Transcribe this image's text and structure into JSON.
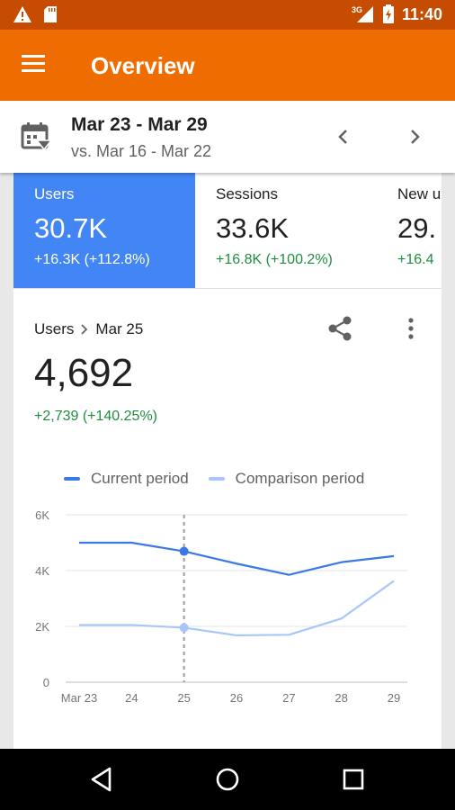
{
  "status_bar": {
    "network": "3G",
    "time": "11:40",
    "icons": [
      "warning-icon",
      "sd-card-icon",
      "signal-icon",
      "battery-icon"
    ]
  },
  "app_bar": {
    "title": "Overview",
    "menu_icon": "menu-icon"
  },
  "date_range": {
    "current": "Mar 23 - Mar 29",
    "comparison": "vs. Mar 16 - Mar 22",
    "icons": [
      "calendar-filter-icon",
      "chevron-left-icon",
      "chevron-right-icon"
    ]
  },
  "metrics": [
    {
      "label": "Users",
      "value": "30.7K",
      "change": "+16.3K (+112.8%)",
      "selected": true
    },
    {
      "label": "Sessions",
      "value": "33.6K",
      "change": "+16.8K (+100.2%)",
      "selected": false
    },
    {
      "label": "New u",
      "value": "29.",
      "change": "+16.4",
      "selected": false
    }
  ],
  "detail": {
    "metric": "Users",
    "date": "Mar 25",
    "value": "4,692",
    "change": "+2,739 (+140.25%)",
    "icons": [
      "share-icon",
      "more-vert-icon"
    ]
  },
  "colors": {
    "status_bar": "#c54c00",
    "app_bar": "#ef6c00",
    "selected_metric": "#4285f4",
    "current_series": "#3b78e7",
    "comparison_series": "#a7c7f9",
    "positive_change": "#1e8e3e"
  },
  "chart_data": {
    "type": "line",
    "x": [
      "Mar 23",
      "24",
      "25",
      "26",
      "27",
      "28",
      "29"
    ],
    "series": [
      {
        "name": "Current period",
        "values": [
          5000,
          5000,
          4692,
          4250,
          3850,
          4300,
          4520
        ]
      },
      {
        "name": "Comparison period",
        "values": [
          2050,
          2050,
          1953,
          1680,
          1700,
          2280,
          3630
        ]
      }
    ],
    "yticks": [
      "0",
      "2K",
      "4K",
      "6K"
    ],
    "ylim": [
      0,
      6000
    ],
    "highlight_index": 2,
    "grid": true,
    "legend": "top"
  },
  "nav_bar": {
    "icons": [
      "back-icon",
      "home-icon",
      "recents-icon"
    ]
  }
}
